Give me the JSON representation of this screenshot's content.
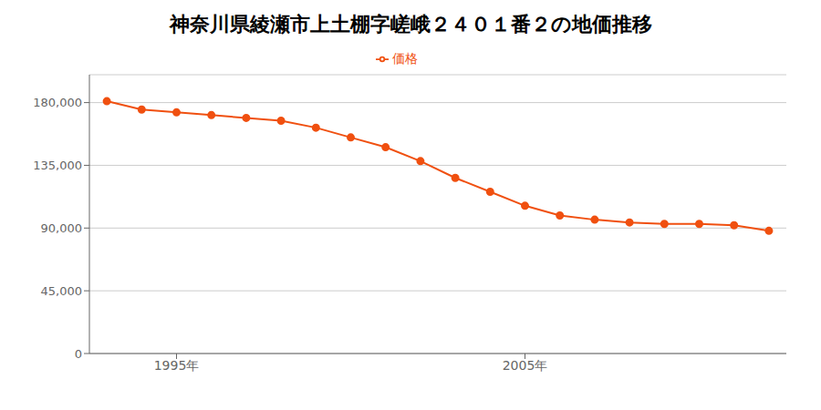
{
  "chart_data": {
    "type": "line",
    "title": "神奈川県綾瀬市上土棚字嵯峨２４０１番２の地価推移",
    "x": [
      1993,
      1994,
      1995,
      1996,
      1997,
      1998,
      1999,
      2000,
      2001,
      2002,
      2003,
      2004,
      2005,
      2006,
      2007,
      2008,
      2009,
      2010,
      2011,
      2012
    ],
    "series": [
      {
        "name": "価格",
        "color": "#f05010",
        "marker": "circle",
        "values": [
          181000,
          175000,
          173000,
          171000,
          169000,
          167000,
          162000,
          155000,
          148000,
          138000,
          126000,
          116000,
          106000,
          99000,
          96000,
          94000,
          93000,
          93000,
          92000,
          88000
        ]
      }
    ],
    "xlim": [
      1992.5,
      2012.5
    ],
    "xticks": [
      {
        "value": 1995,
        "label": "1995年"
      },
      {
        "value": 2005,
        "label": "2005年"
      }
    ],
    "ylim": [
      0,
      200000
    ],
    "yticks": [
      0,
      {
        "value": 45000,
        "label": "45,000"
      },
      {
        "value": 90000,
        "label": "90,000"
      },
      {
        "value": 135000,
        "label": "135,000"
      },
      {
        "value": 180000,
        "label": "180,000"
      }
    ],
    "grid": true,
    "legend": "top"
  }
}
